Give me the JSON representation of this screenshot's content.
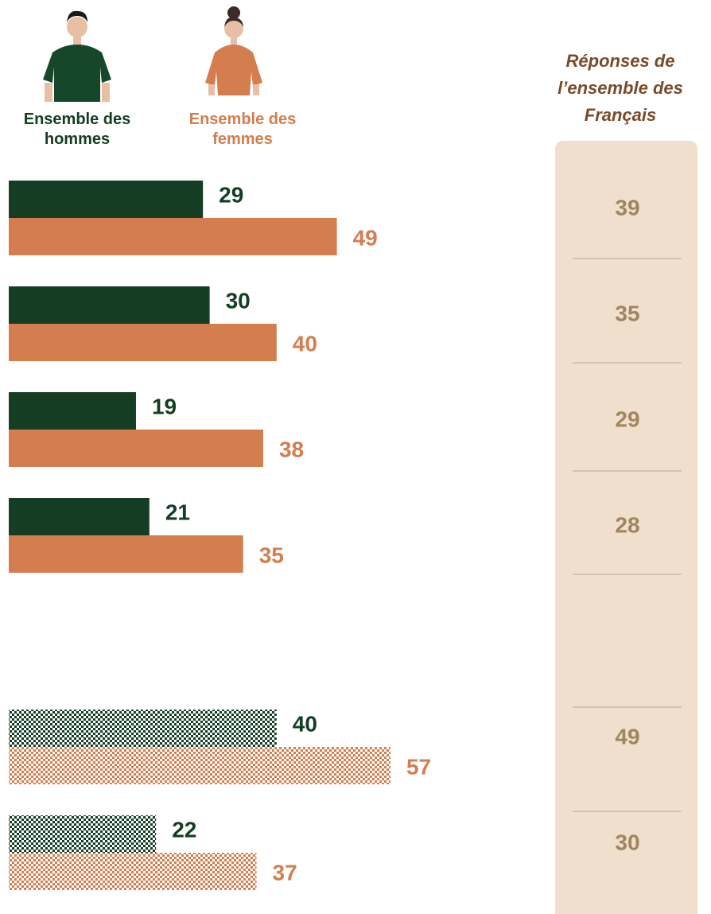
{
  "chart_data": {
    "type": "bar",
    "categories": [
      null,
      null,
      null,
      null,
      null,
      null,
      null
    ],
    "series": [
      {
        "name": "Ensemble des hommes",
        "color": "#143d24",
        "values": [
          29,
          30,
          19,
          21,
          null,
          40,
          22
        ]
      },
      {
        "name": "Ensemble des femmes",
        "color": "#d47d4f",
        "values": [
          49,
          40,
          38,
          35,
          null,
          57,
          37
        ]
      }
    ],
    "hatched": [
      false,
      false,
      false,
      false,
      false,
      true,
      true
    ],
    "total": {
      "title": "Réponses de l’ensemble des Français",
      "color": "#a08560",
      "values": [
        39,
        35,
        29,
        28,
        null,
        49,
        30
      ]
    }
  }
}
